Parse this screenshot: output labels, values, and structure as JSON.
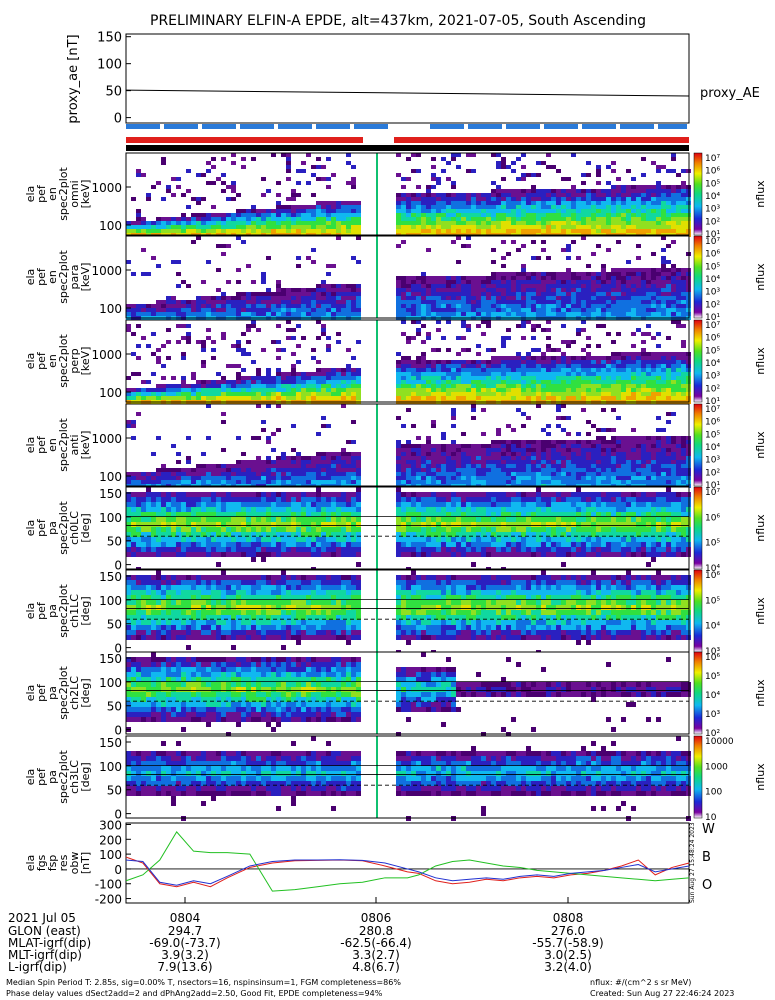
{
  "title": "PRELIMINARY ELFIN-A EPDE, alt=437km, 2021-07-05, South Ascending",
  "colors": {
    "red_bar": "#e0201c",
    "blue_bar": "#2a7ad8",
    "black_bar": "#000000",
    "sun_bar": "#000000",
    "line_w": "#e0201c",
    "line_b": "#22c022",
    "line_o": "#2030d0",
    "line_proxy": "#000000"
  },
  "chart_data": [
    {
      "type": "line",
      "name": "proxy_ae",
      "ylabel": "proxy_ae [nT]",
      "ylim": [
        -10,
        155
      ],
      "yticks": [
        "150",
        "100",
        "50",
        "0"
      ],
      "ytick_values": [
        150,
        100,
        50,
        0
      ],
      "series": [
        {
          "name": "proxy_AE",
          "x": [
            0,
            1
          ],
          "values": [
            51,
            40
          ]
        }
      ]
    },
    {
      "type": "heatmap",
      "panels": [
        {
          "ylabel": [
            "ela",
            "pef",
            "en",
            "spec2plot",
            "omni",
            "[keV]"
          ],
          "yticks": [
            "1000",
            "100"
          ],
          "cbar_label": "nflux",
          "cbar_ticks": [
            "10⁷",
            "10⁶",
            "10⁵",
            "10⁴",
            "10³",
            "10²",
            "10¹"
          ]
        },
        {
          "ylabel": [
            "ela",
            "pef",
            "en",
            "spec2plot",
            "para",
            "[keV]"
          ],
          "yticks": [
            "1000",
            "100"
          ],
          "cbar_label": "nflux",
          "cbar_ticks": [
            "10⁷",
            "10⁶",
            "10⁵",
            "10⁴",
            "10³",
            "10²",
            "10¹"
          ]
        },
        {
          "ylabel": [
            "ela",
            "pef",
            "en",
            "spec2plot",
            "perp",
            "[keV]"
          ],
          "yticks": [
            "1000",
            "100"
          ],
          "cbar_label": "nflux",
          "cbar_ticks": [
            "10⁷",
            "10⁶",
            "10⁵",
            "10⁴",
            "10³",
            "10²",
            "10¹"
          ]
        },
        {
          "ylabel": [
            "ela",
            "pef",
            "en",
            "spec2plot",
            "anti",
            "[keV]"
          ],
          "yticks": [
            "1000",
            "100"
          ],
          "cbar_label": "nflux",
          "cbar_ticks": [
            "10⁷",
            "10⁶",
            "10⁵",
            "10⁴",
            "10³",
            "10²",
            "10¹"
          ]
        },
        {
          "ylabel": [
            "ela",
            "pef",
            "pa",
            "spec2plot",
            "ch0LC",
            "[deg]"
          ],
          "yticks": [
            "150",
            "100",
            "50",
            "0"
          ],
          "cbar_label": "nflux",
          "cbar_ticks": [
            "10⁷",
            "10⁶",
            "10⁵",
            "10⁴"
          ]
        },
        {
          "ylabel": [
            "ela",
            "pef",
            "pa",
            "spec2plot",
            "ch1LC",
            "[deg]"
          ],
          "yticks": [
            "150",
            "100",
            "50",
            "0"
          ],
          "cbar_label": "nflux",
          "cbar_ticks": [
            "10⁶",
            "10⁵",
            "10⁴",
            "10³"
          ]
        },
        {
          "ylabel": [
            "ela",
            "pef",
            "pa",
            "spec2plot",
            "ch2LC",
            "[deg]"
          ],
          "yticks": [
            "150",
            "100",
            "50",
            "0"
          ],
          "cbar_label": "nflux",
          "cbar_ticks": [
            "10⁶",
            "10⁵",
            "10⁴",
            "10³",
            "10²"
          ]
        },
        {
          "ylabel": [
            "ela",
            "pef",
            "pa",
            "spec2plot",
            "ch3LC",
            "[deg]"
          ],
          "yticks": [
            "150",
            "100",
            "50",
            "0"
          ],
          "cbar_label": "nflux",
          "cbar_ticks": [
            "10000",
            "1000",
            "100",
            "10"
          ]
        }
      ]
    },
    {
      "type": "line",
      "name": "ela_fgs_fsp_res_obw",
      "ylabel": [
        "ela",
        "fgs",
        "fsp",
        "res",
        "obw",
        "[nT]"
      ],
      "ylim": [
        -230,
        310
      ],
      "yticks": [
        "300",
        "200",
        "100",
        "0",
        "-100",
        "-200"
      ],
      "ytick_values": [
        300,
        200,
        100,
        0,
        -100,
        -200
      ],
      "legend": [
        "W",
        "B",
        "O"
      ],
      "series": [
        {
          "name": "W",
          "x": [
            0.0,
            0.03,
            0.06,
            0.09,
            0.12,
            0.15,
            0.18,
            0.22,
            0.26,
            0.3,
            0.34,
            0.38,
            0.42,
            0.46,
            0.5,
            0.52,
            0.55,
            0.58,
            0.61,
            0.64,
            0.67,
            0.7,
            0.73,
            0.76,
            0.79,
            0.82,
            0.85,
            0.88,
            0.91,
            0.94,
            0.97,
            1.0
          ],
          "values": [
            80,
            40,
            -100,
            -120,
            -90,
            -120,
            -60,
            10,
            40,
            55,
            58,
            60,
            55,
            20,
            -20,
            -30,
            -80,
            -100,
            -90,
            -70,
            -80,
            -60,
            -50,
            -60,
            -40,
            -30,
            -10,
            20,
            60,
            -40,
            10,
            40
          ]
        },
        {
          "name": "B",
          "x": [
            0.0,
            0.03,
            0.06,
            0.09,
            0.12,
            0.15,
            0.18,
            0.22,
            0.26,
            0.3,
            0.34,
            0.38,
            0.42,
            0.46,
            0.5,
            0.52,
            0.55,
            0.58,
            0.61,
            0.64,
            0.67,
            0.7,
            0.73,
            0.76,
            0.79,
            0.82,
            0.85,
            0.88,
            0.91,
            0.94,
            0.97,
            1.0
          ],
          "values": [
            -80,
            -40,
            60,
            250,
            120,
            110,
            110,
            100,
            -150,
            -140,
            -120,
            -100,
            -90,
            -60,
            -60,
            -40,
            20,
            50,
            60,
            40,
            20,
            10,
            -10,
            -20,
            -30,
            -40,
            -50,
            -60,
            -70,
            -80,
            -70,
            -60
          ]
        },
        {
          "name": "O",
          "x": [
            0.0,
            0.03,
            0.06,
            0.09,
            0.12,
            0.15,
            0.18,
            0.22,
            0.26,
            0.3,
            0.34,
            0.38,
            0.42,
            0.46,
            0.5,
            0.52,
            0.55,
            0.58,
            0.61,
            0.64,
            0.67,
            0.7,
            0.73,
            0.76,
            0.79,
            0.82,
            0.85,
            0.88,
            0.91,
            0.94,
            0.97,
            1.0
          ],
          "values": [
            60,
            50,
            -90,
            -110,
            -80,
            -100,
            -50,
            20,
            50,
            60,
            60,
            62,
            58,
            40,
            0,
            -20,
            -60,
            -80,
            -70,
            -60,
            -70,
            -50,
            -40,
            -50,
            -30,
            -20,
            -10,
            10,
            30,
            -20,
            0,
            20
          ]
        }
      ]
    }
  ],
  "footer": {
    "time_label": "2021 Jul 05",
    "ticks": [
      "0804",
      "0806",
      "0808"
    ],
    "rows": [
      {
        "label": "GLON (east)",
        "values": [
          "294.7",
          "280.8",
          "276.0"
        ]
      },
      {
        "label": "MLAT-igrf(dip)",
        "values": [
          "-69.0(-73.7)",
          "-62.5(-66.4)",
          "-55.7(-58.9)"
        ]
      },
      {
        "label": "MLT-igrf(dip)",
        "values": [
          "3.9(3.2)",
          "3.3(2.7)",
          "3.0(2.5)"
        ]
      },
      {
        "label": "L-igrf(dip)",
        "values": [
          "7.9(13.6)",
          "4.8(6.7)",
          "3.2(4.0)"
        ]
      }
    ],
    "note1": "Median Spin Period T: 2.85s, sig=0.00% T, nsectors=16, nspinsinsum=1, FGM completeness=86%",
    "note2": "Phase delay values dSect2add=2 and dPhAng2add=2.50, Good Fit, EPDE completeness=94%",
    "units": "nflux: #/(cm^2 s sr MeV)",
    "created": "Created: Sun Aug 27 22:46:24 2023",
    "vertical_stamp": "Sun Aug 27 15:48:24 2023"
  }
}
